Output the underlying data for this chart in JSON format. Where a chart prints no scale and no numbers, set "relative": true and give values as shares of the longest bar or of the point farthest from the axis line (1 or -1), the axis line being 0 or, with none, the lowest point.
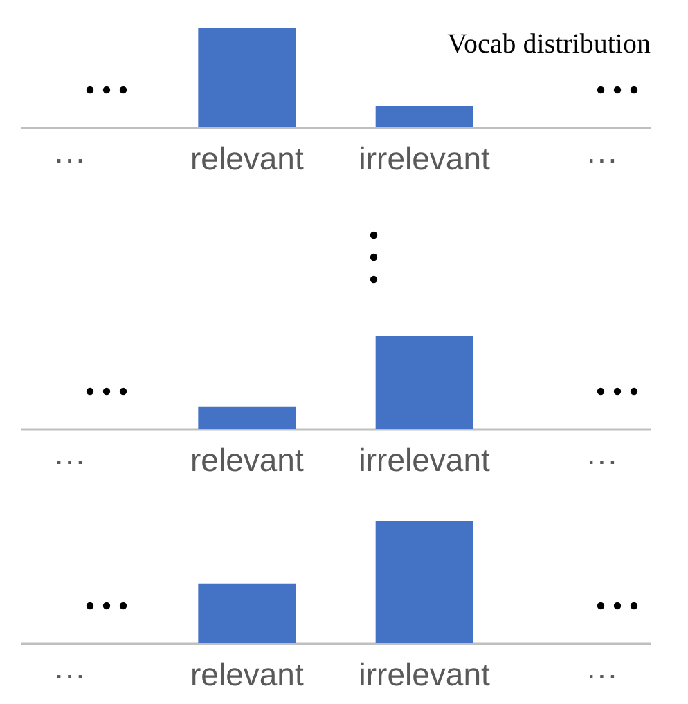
{
  "chart_data": [
    {
      "type": "bar",
      "title": "Vocab distribution",
      "categories": [
        "···",
        "relevant",
        "irrelevant",
        "···"
      ],
      "values": [
        null,
        1,
        0.21,
        null
      ],
      "color": "#4472c4",
      "relative": true
    },
    {
      "type": "bar",
      "categories": [
        "···",
        "relevant",
        "irrelevant",
        "···"
      ],
      "values": [
        null,
        0.24,
        1,
        null
      ],
      "color": "#4472c4",
      "relative": true
    },
    {
      "type": "bar",
      "categories": [
        "···",
        "relevant",
        "irrelevant",
        "···"
      ],
      "values": [
        null,
        0.49,
        1,
        null
      ],
      "color": "#4472c4",
      "relative": true
    }
  ]
}
